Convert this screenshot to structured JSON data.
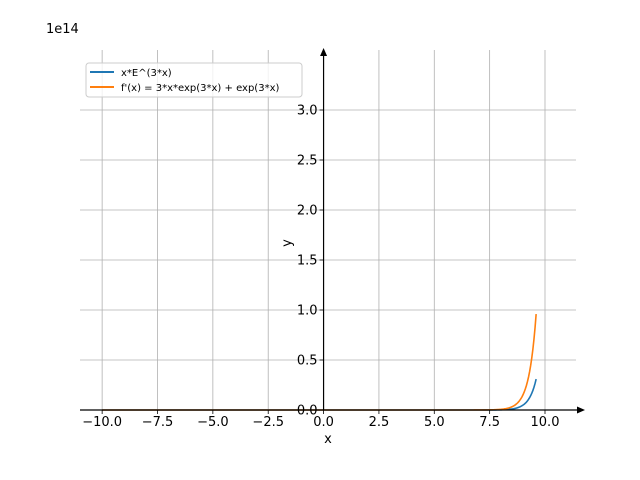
{
  "chart_data": {
    "type": "line",
    "offset_label": "1e14",
    "xlabel": "x",
    "ylabel": "y",
    "xlim": [
      -11.0,
      11.4
    ],
    "ylim": [
      0,
      3.5
    ],
    "y_scale_factor": 100000000000000.0,
    "x_ticks": [
      -10.0,
      -7.5,
      -5.0,
      -2.5,
      0.0,
      2.5,
      5.0,
      7.5,
      10.0
    ],
    "x_tick_labels": [
      "−10.0",
      "−7.5",
      "−5.0",
      "−2.5",
      "0.0",
      "2.5",
      "5.0",
      "7.5",
      "10.0"
    ],
    "y_ticks": [
      0.0,
      0.5,
      1.0,
      1.5,
      2.0,
      2.5,
      3.0
    ],
    "y_tick_labels": [
      "0.0",
      "0.5",
      "1.0",
      "1.5",
      "2.0",
      "2.5",
      "3.0"
    ],
    "grid": true,
    "legend_position": "top-left",
    "x_domain": [
      -10,
      9.6
    ],
    "series": [
      {
        "name": "x*E^(3*x)",
        "color": "#1f77b4",
        "formula": "x*exp(3*x)"
      },
      {
        "name": "f'(x) = 3*x*exp(3*x) + exp(3*x)",
        "color": "#ff7f0e",
        "formula": "3*x*exp(3*x) + exp(3*x)"
      }
    ]
  }
}
